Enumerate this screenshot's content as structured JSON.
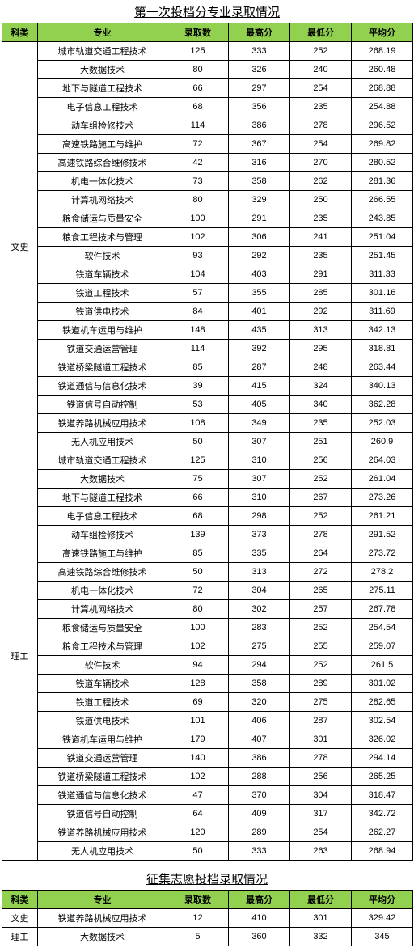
{
  "table1": {
    "title": "第一次投档分专业录取情况",
    "headers": [
      "科类",
      "专业",
      "录取数",
      "最高分",
      "最低分",
      "平均分"
    ],
    "groups": [
      {
        "category": "文史",
        "rows": [
          [
            "城市轨道交通工程技术",
            125,
            333,
            252,
            268.19
          ],
          [
            "大数据技术",
            80,
            326,
            240,
            260.48
          ],
          [
            "地下与隧道工程技术",
            66,
            297,
            254,
            268.88
          ],
          [
            "电子信息工程技术",
            68,
            356,
            235,
            254.88
          ],
          [
            "动车组检修技术",
            114,
            386,
            278,
            296.52
          ],
          [
            "高速铁路施工与维护",
            72,
            367,
            254,
            269.82
          ],
          [
            "高速铁路综合维修技术",
            42,
            316,
            270,
            280.52
          ],
          [
            "机电一体化技术",
            73,
            358,
            262,
            281.36
          ],
          [
            "计算机网络技术",
            80,
            329,
            250,
            266.55
          ],
          [
            "粮食储运与质量安全",
            100,
            291,
            235,
            243.85
          ],
          [
            "粮食工程技术与管理",
            102,
            306,
            241,
            251.04
          ],
          [
            "软件技术",
            93,
            292,
            235,
            251.45
          ],
          [
            "铁道车辆技术",
            104,
            403,
            291,
            311.33
          ],
          [
            "铁道工程技术",
            57,
            355,
            285,
            301.16
          ],
          [
            "铁道供电技术",
            84,
            401,
            292,
            311.69
          ],
          [
            "铁道机车运用与维护",
            148,
            435,
            313,
            342.13
          ],
          [
            "铁道交通运营管理",
            114,
            392,
            295,
            318.81
          ],
          [
            "铁道桥梁隧道工程技术",
            85,
            287,
            248,
            263.44
          ],
          [
            "铁道通信与信息化技术",
            39,
            415,
            324,
            340.13
          ],
          [
            "铁道信号自动控制",
            53,
            405,
            340,
            362.28
          ],
          [
            "铁道养路机械应用技术",
            108,
            349,
            235,
            252.03
          ],
          [
            "无人机应用技术",
            50,
            307,
            251,
            260.9
          ]
        ]
      },
      {
        "category": "理工",
        "rows": [
          [
            "城市轨道交通工程技术",
            125,
            310,
            256,
            264.03
          ],
          [
            "大数据技术",
            75,
            307,
            252,
            261.04
          ],
          [
            "地下与隧道工程技术",
            66,
            310,
            267,
            273.26
          ],
          [
            "电子信息工程技术",
            68,
            298,
            252,
            261.21
          ],
          [
            "动车组检修技术",
            139,
            373,
            278,
            291.52
          ],
          [
            "高速铁路施工与维护",
            85,
            335,
            264,
            273.72
          ],
          [
            "高速铁路综合维修技术",
            50,
            313,
            272,
            278.2
          ],
          [
            "机电一体化技术",
            72,
            304,
            265,
            275.11
          ],
          [
            "计算机网络技术",
            80,
            302,
            257,
            267.78
          ],
          [
            "粮食储运与质量安全",
            100,
            283,
            252,
            254.54
          ],
          [
            "粮食工程技术与管理",
            102,
            275,
            255,
            259.07
          ],
          [
            "软件技术",
            94,
            294,
            252,
            261.5
          ],
          [
            "铁道车辆技术",
            128,
            358,
            289,
            301.02
          ],
          [
            "铁道工程技术",
            69,
            320,
            275,
            282.65
          ],
          [
            "铁道供电技术",
            101,
            406,
            287,
            302.54
          ],
          [
            "铁道机车运用与维护",
            179,
            407,
            301,
            326.02
          ],
          [
            "铁道交通运营管理",
            140,
            386,
            278,
            294.14
          ],
          [
            "铁道桥梁隧道工程技术",
            102,
            288,
            256,
            265.25
          ],
          [
            "铁道通信与信息化技术",
            47,
            370,
            304,
            318.47
          ],
          [
            "铁道信号自动控制",
            64,
            409,
            317,
            342.72
          ],
          [
            "铁道养路机械应用技术",
            120,
            289,
            254,
            262.27
          ],
          [
            "无人机应用技术",
            50,
            333,
            263,
            268.94
          ]
        ]
      }
    ]
  },
  "table2": {
    "title": "征集志愿投档录取情况",
    "headers": [
      "科类",
      "专业",
      "录取数",
      "最高分",
      "最低分",
      "平均分"
    ],
    "rows": [
      [
        "文史",
        "铁道养路机械应用技术",
        12,
        410,
        301,
        329.42
      ],
      [
        "理工",
        "大数据技术",
        5,
        360,
        332,
        345
      ]
    ]
  }
}
